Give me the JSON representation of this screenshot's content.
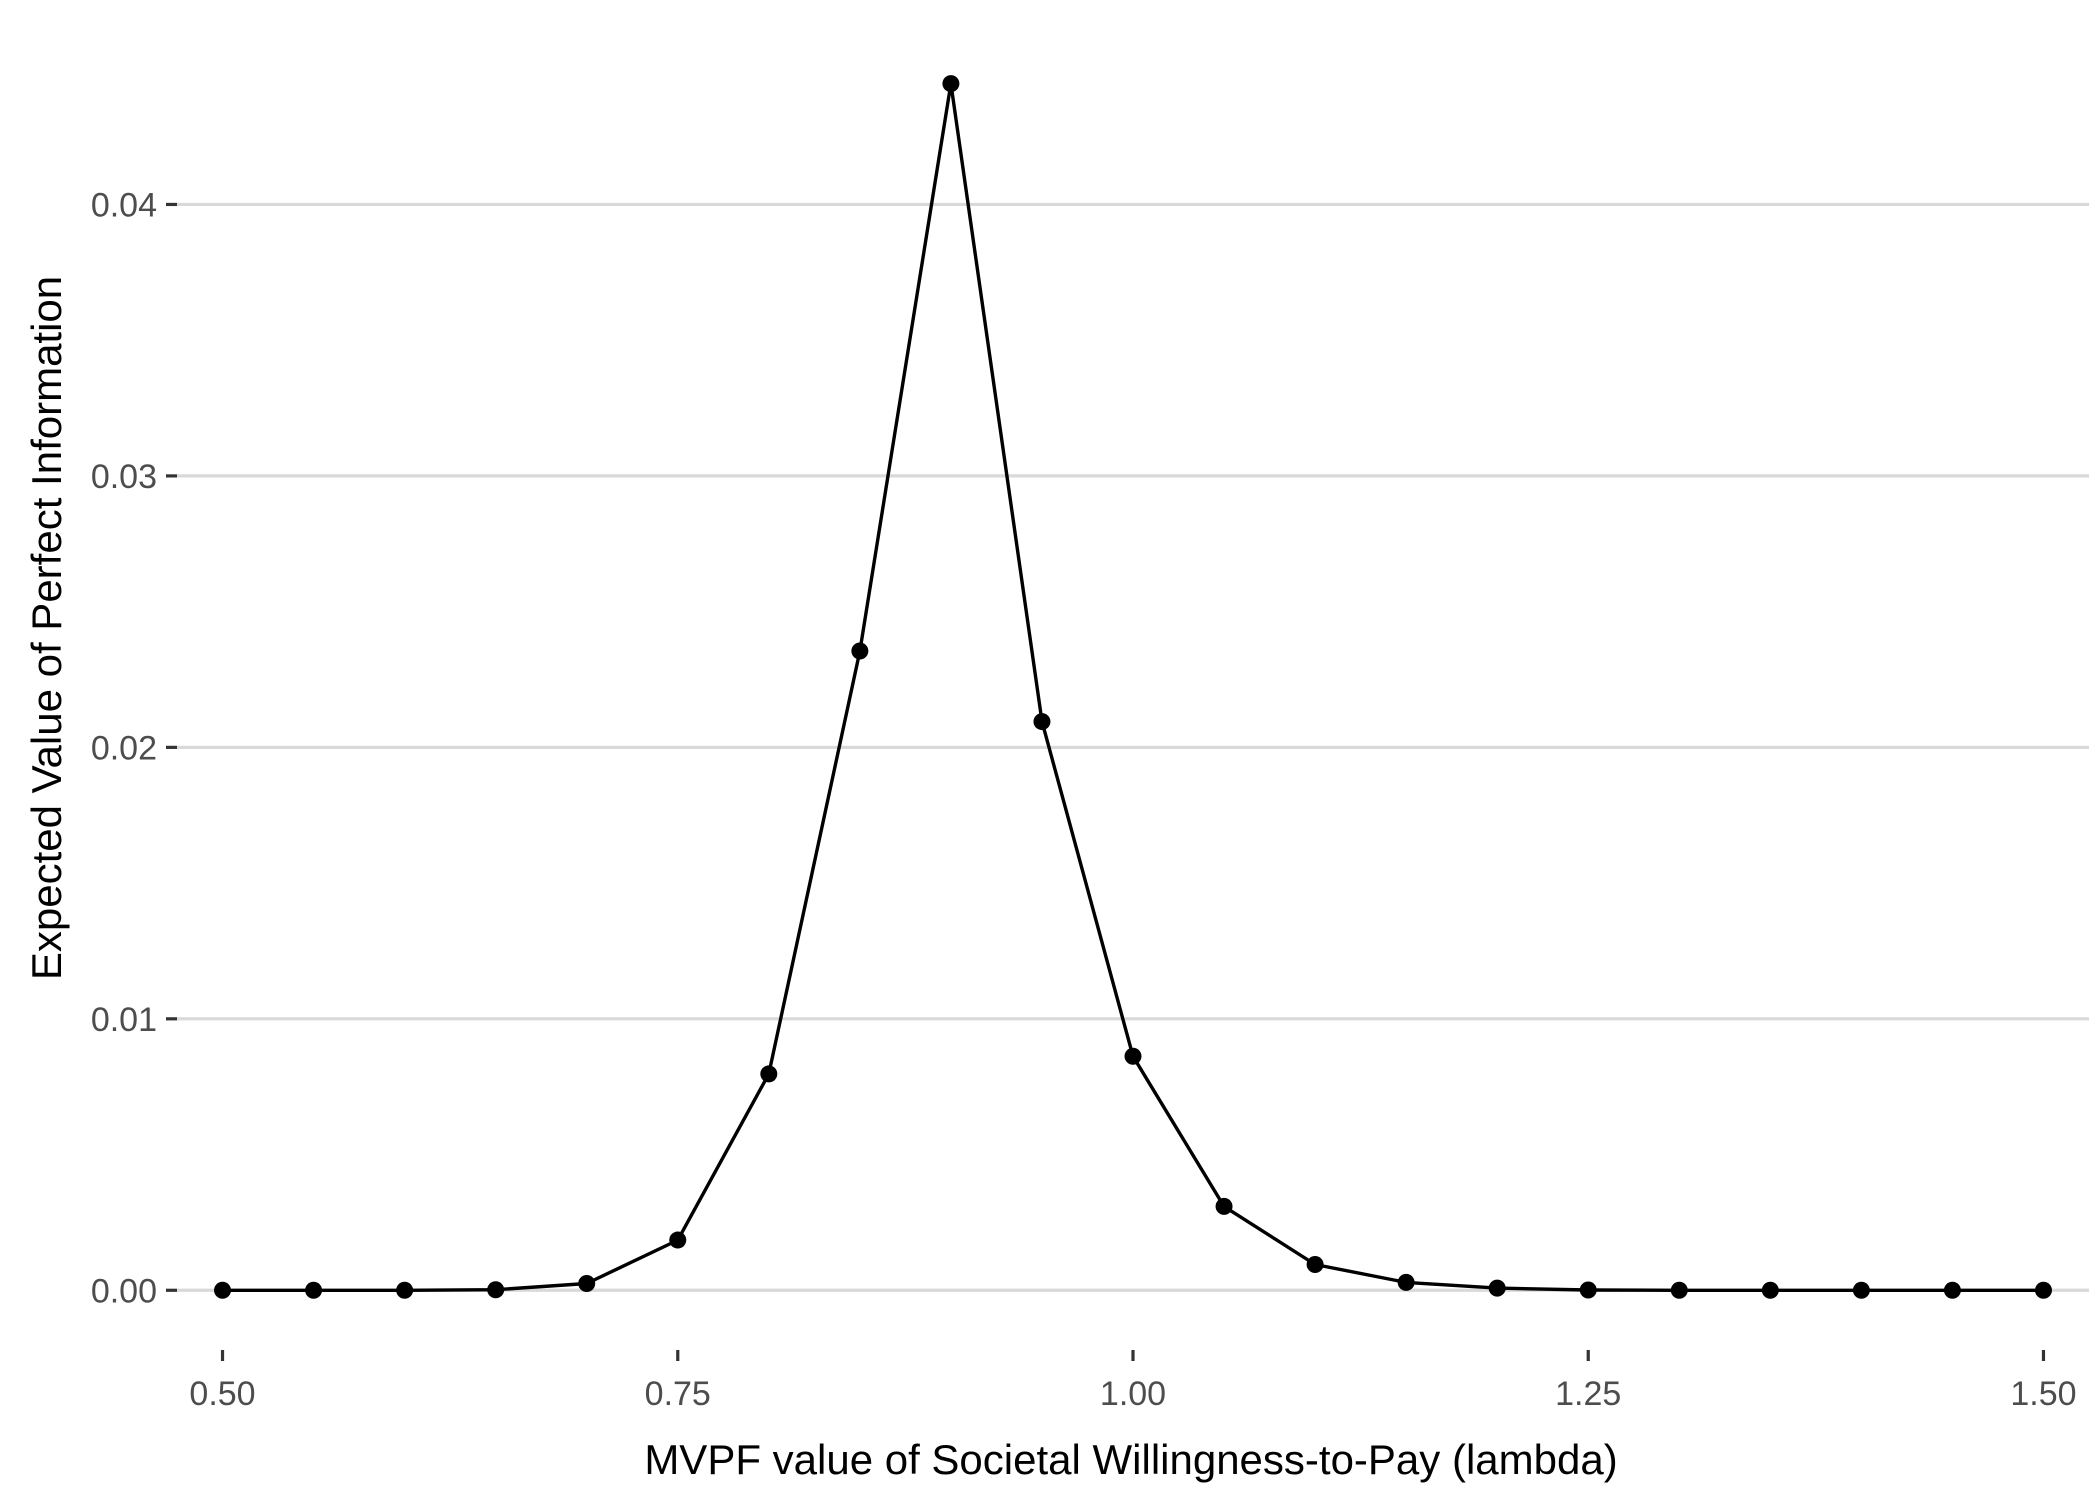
{
  "chart_data": {
    "type": "line",
    "title": "",
    "xlabel": "MVPF value of Societal Willingness-to-Pay (lambda)",
    "ylabel": "Expected Value of Perfect Information",
    "xlim": [
      0.475,
      1.525
    ],
    "ylim": [
      -0.0022,
      0.0465
    ],
    "x_ticks": [
      0.5,
      0.75,
      1.0,
      1.25,
      1.5
    ],
    "x_tick_labels": [
      "0.50",
      "0.75",
      "1.00",
      "1.25",
      "1.50"
    ],
    "y_ticks": [
      0.0,
      0.01,
      0.02,
      0.03,
      0.04
    ],
    "y_tick_labels": [
      "0.00",
      "0.01",
      "0.02",
      "0.03",
      "0.04"
    ],
    "grid": "horizontal major",
    "legend": "none",
    "series": [
      {
        "x": [
          0.5,
          0.55,
          0.6,
          0.65,
          0.7,
          0.75,
          0.8,
          0.85,
          0.9,
          0.95,
          1.0,
          1.05,
          1.1,
          1.15,
          1.2,
          1.25,
          1.3,
          1.35,
          1.4,
          1.45,
          1.5
        ],
        "y": [
          0.0,
          0.0,
          0.0,
          2e-05,
          0.00025,
          0.00185,
          0.00797,
          0.02355,
          0.04445,
          0.02095,
          0.00862,
          0.00309,
          0.00095,
          0.00029,
          8e-05,
          1e-05,
          0.0,
          0.0,
          0.0,
          0.0,
          0.0
        ]
      }
    ]
  }
}
